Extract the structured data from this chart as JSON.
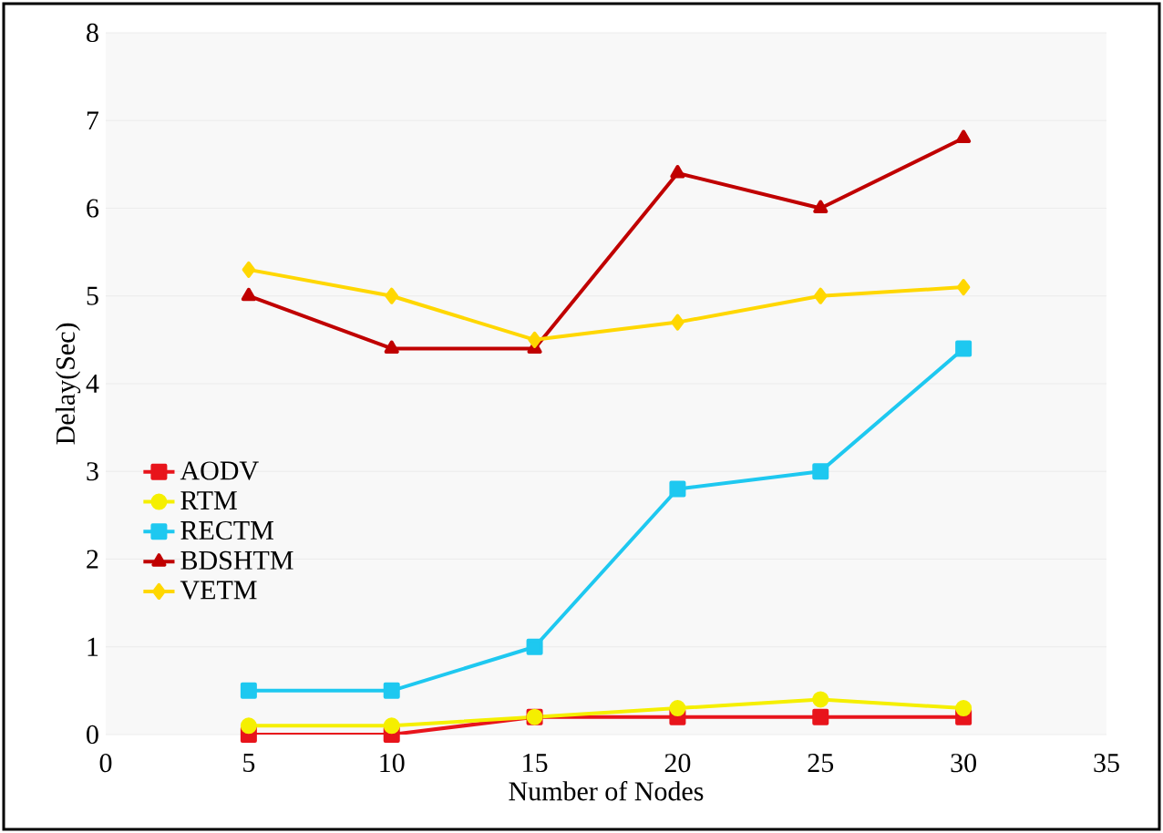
{
  "chart_data": {
    "type": "line",
    "xlabel": "Number of Nodes",
    "ylabel": "Delay(Sec)",
    "x": [
      5,
      10,
      15,
      20,
      25,
      30
    ],
    "xlim": [
      0,
      35
    ],
    "xticks": [
      0,
      5,
      10,
      15,
      20,
      25,
      30,
      35
    ],
    "ylim": [
      0,
      8
    ],
    "yticks": [
      0,
      1,
      2,
      3,
      4,
      5,
      6,
      7,
      8
    ],
    "grid": "y",
    "legend": "left",
    "series": [
      {
        "name": "AODV",
        "color": "#e8141b",
        "marker": "square",
        "values": [
          0,
          0,
          0.2,
          0.2,
          0.2,
          0.2
        ]
      },
      {
        "name": "RTM",
        "color": "#f5ef00",
        "marker": "circle",
        "values": [
          0.1,
          0.1,
          0.2,
          0.3,
          0.4,
          0.3
        ]
      },
      {
        "name": "RECTM",
        "color": "#1ec8f0",
        "marker": "square",
        "values": [
          0.5,
          0.5,
          1,
          2.8,
          3,
          4.4
        ]
      },
      {
        "name": "BDSHTM",
        "color": "#c00000",
        "marker": "triangle",
        "values": [
          5,
          4.4,
          4.4,
          6.4,
          6,
          6.8
        ]
      },
      {
        "name": "VETM",
        "color": "#ffd700",
        "marker": "diamond",
        "values": [
          5.3,
          5,
          4.5,
          4.7,
          5,
          5.1
        ]
      }
    ]
  }
}
